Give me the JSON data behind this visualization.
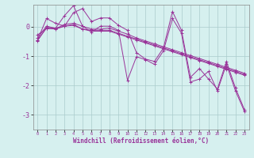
{
  "xlabel": "Windchill (Refroidissement éolien,°C)",
  "x": [
    0,
    1,
    2,
    3,
    4,
    5,
    6,
    7,
    8,
    9,
    10,
    11,
    12,
    13,
    14,
    15,
    16,
    17,
    18,
    19,
    20,
    21,
    22,
    23
  ],
  "series": [
    [
      -0.45,
      0.28,
      0.12,
      0.02,
      0.48,
      0.62,
      0.18,
      0.3,
      0.3,
      0.05,
      -0.12,
      -0.88,
      -1.1,
      -1.18,
      -0.72,
      0.52,
      -0.12,
      -1.72,
      -1.42,
      -1.78,
      -2.12,
      -1.18,
      -2.08,
      -2.82
    ],
    [
      -0.48,
      -0.02,
      -0.05,
      0.38,
      0.72,
      0.02,
      -0.18,
      0.02,
      0.02,
      -0.12,
      -1.82,
      -1.02,
      -1.12,
      -1.28,
      -0.82,
      0.28,
      -0.22,
      -1.88,
      -1.78,
      -1.52,
      -2.18,
      -1.28,
      -2.18,
      -2.88
    ],
    [
      -0.28,
      -0.05,
      -0.07,
      0.08,
      0.12,
      0.02,
      -0.08,
      -0.08,
      -0.05,
      -0.15,
      -0.25,
      -0.38,
      -0.48,
      -0.58,
      -0.68,
      -0.78,
      -0.88,
      -0.98,
      -1.08,
      -1.18,
      -1.28,
      -1.38,
      -1.48,
      -1.58
    ],
    [
      -0.45,
      -0.05,
      -0.08,
      0.02,
      0.08,
      -0.08,
      -0.12,
      -0.12,
      -0.12,
      -0.22,
      -0.32,
      -0.42,
      -0.52,
      -0.62,
      -0.72,
      -0.82,
      -0.92,
      -1.02,
      -1.12,
      -1.22,
      -1.32,
      -1.42,
      -1.52,
      -1.62
    ],
    [
      -0.38,
      0.02,
      -0.05,
      0.02,
      0.05,
      -0.08,
      -0.15,
      -0.15,
      -0.15,
      -0.25,
      -0.35,
      -0.45,
      -0.55,
      -0.65,
      -0.75,
      -0.85,
      -0.95,
      -1.05,
      -1.15,
      -1.25,
      -1.35,
      -1.45,
      -1.55,
      -1.65
    ]
  ],
  "line_color": "#993399",
  "bg_color": "#d6f0ef",
  "grid_color": "#aacccc",
  "ylim": [
    -3.5,
    0.75
  ],
  "yticks": [
    0,
    -1,
    -2,
    -3
  ],
  "xlim": [
    -0.5,
    23.5
  ]
}
